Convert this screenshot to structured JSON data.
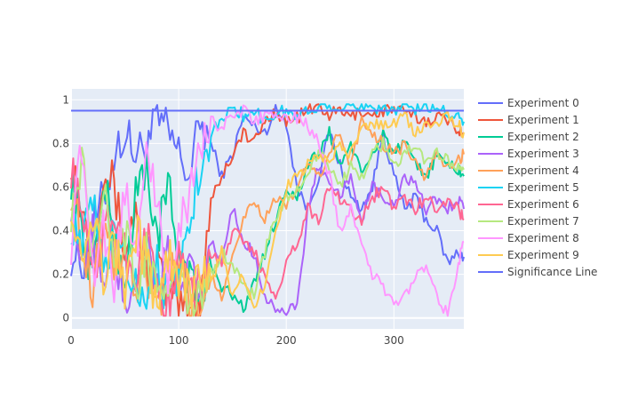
{
  "chart_data": {
    "type": "line",
    "title": "",
    "xlabel": "",
    "ylabel": "",
    "xlim": [
      0,
      365
    ],
    "ylim": [
      -0.05,
      1.05
    ],
    "x_ticks": [
      0,
      100,
      200,
      300
    ],
    "y_ticks": [
      0,
      0.2,
      0.4,
      0.6,
      0.8,
      1
    ],
    "x_tick_labels": [
      "0",
      "100",
      "200",
      "300"
    ],
    "y_tick_labels": [
      "0",
      "0.2",
      "0.4",
      "0.6",
      "0.8",
      "1"
    ],
    "grid": true,
    "legend_position": "right",
    "plot_background": "#E5ECF6",
    "series": [
      {
        "name": "Experiment 0",
        "color": "#636EFA",
        "x": [
          0,
          10,
          20,
          30,
          40,
          50,
          60,
          70,
          80,
          90,
          100,
          110,
          120,
          130,
          140,
          150,
          160,
          170,
          180,
          190,
          200,
          210,
          220,
          230,
          240,
          250,
          260,
          270,
          280,
          290,
          300,
          310,
          320,
          330,
          340,
          350,
          360,
          365
        ],
        "y": [
          0.3,
          0.25,
          0.4,
          0.55,
          0.75,
          0.85,
          0.75,
          0.8,
          0.9,
          0.85,
          0.75,
          0.65,
          0.9,
          0.8,
          0.65,
          0.75,
          0.92,
          0.88,
          0.85,
          0.95,
          0.9,
          0.6,
          0.5,
          0.65,
          0.85,
          0.7,
          0.55,
          0.5,
          0.6,
          0.85,
          0.65,
          0.5,
          0.55,
          0.45,
          0.4,
          0.25,
          0.3,
          0.28
        ]
      },
      {
        "name": "Experiment 1",
        "color": "#EF553B",
        "x": [
          0,
          10,
          20,
          30,
          40,
          50,
          60,
          70,
          80,
          90,
          100,
          110,
          120,
          130,
          140,
          150,
          160,
          170,
          180,
          190,
          200,
          210,
          220,
          230,
          240,
          250,
          260,
          270,
          280,
          290,
          300,
          310,
          320,
          330,
          340,
          350,
          360,
          365
        ],
        "y": [
          0.75,
          0.5,
          0.3,
          0.7,
          0.6,
          0.3,
          0.5,
          0.2,
          0.25,
          0.1,
          0.05,
          0.02,
          0.1,
          0.55,
          0.65,
          0.75,
          0.85,
          0.8,
          0.9,
          0.95,
          0.9,
          0.92,
          0.95,
          0.97,
          0.93,
          0.95,
          0.92,
          0.95,
          0.93,
          0.95,
          0.96,
          0.94,
          0.92,
          0.9,
          0.93,
          0.9,
          0.87,
          0.85
        ]
      },
      {
        "name": "Experiment 2",
        "color": "#00CC96",
        "x": [
          0,
          10,
          20,
          30,
          40,
          50,
          60,
          70,
          80,
          90,
          100,
          110,
          120,
          130,
          140,
          150,
          160,
          170,
          180,
          190,
          200,
          210,
          220,
          230,
          240,
          250,
          260,
          270,
          280,
          290,
          300,
          310,
          320,
          330,
          340,
          350,
          360,
          365
        ],
        "y": [
          0.65,
          0.4,
          0.2,
          0.6,
          0.4,
          0.15,
          0.55,
          0.7,
          0.35,
          0.6,
          0.3,
          0.2,
          0.05,
          0.25,
          0.15,
          0.1,
          0.05,
          0.15,
          0.3,
          0.45,
          0.6,
          0.55,
          0.7,
          0.75,
          0.85,
          0.7,
          0.8,
          0.65,
          0.75,
          0.85,
          0.75,
          0.8,
          0.7,
          0.65,
          0.75,
          0.7,
          0.68,
          0.65
        ]
      },
      {
        "name": "Experiment 3",
        "color": "#AB63FA",
        "x": [
          0,
          10,
          20,
          30,
          40,
          50,
          60,
          70,
          80,
          90,
          100,
          110,
          120,
          130,
          140,
          150,
          160,
          170,
          180,
          190,
          200,
          210,
          220,
          230,
          240,
          250,
          260,
          270,
          280,
          290,
          300,
          310,
          320,
          330,
          340,
          350,
          360,
          365
        ],
        "y": [
          0.55,
          0.2,
          0.4,
          0.1,
          0.3,
          0.05,
          0.2,
          0.35,
          0.15,
          0.3,
          0.1,
          0.2,
          0.1,
          0.35,
          0.25,
          0.5,
          0.35,
          0.3,
          0.1,
          0.05,
          0.02,
          0.05,
          0.5,
          0.7,
          0.6,
          0.55,
          0.65,
          0.45,
          0.6,
          0.55,
          0.5,
          0.65,
          0.6,
          0.5,
          0.55,
          0.5,
          0.55,
          0.5
        ]
      },
      {
        "name": "Experiment 4",
        "color": "#FFA15A",
        "x": [
          0,
          10,
          20,
          30,
          40,
          50,
          60,
          70,
          80,
          90,
          100,
          110,
          120,
          130,
          140,
          150,
          160,
          170,
          180,
          190,
          200,
          210,
          220,
          230,
          240,
          250,
          260,
          270,
          280,
          290,
          300,
          310,
          320,
          330,
          340,
          350,
          360,
          365
        ],
        "y": [
          0.6,
          0.35,
          0.15,
          0.45,
          0.25,
          0.3,
          0.1,
          0.2,
          0.05,
          0.15,
          0.25,
          0.1,
          0.05,
          0.2,
          0.1,
          0.3,
          0.45,
          0.55,
          0.45,
          0.55,
          0.5,
          0.6,
          0.7,
          0.65,
          0.75,
          0.85,
          0.7,
          0.9,
          0.85,
          0.8,
          0.75,
          0.8,
          0.7,
          0.65,
          0.75,
          0.7,
          0.72,
          0.75
        ]
      },
      {
        "name": "Experiment 5",
        "color": "#19D3F3",
        "x": [
          0,
          10,
          20,
          30,
          40,
          50,
          60,
          70,
          80,
          90,
          100,
          110,
          120,
          130,
          140,
          150,
          160,
          170,
          180,
          190,
          200,
          210,
          220,
          230,
          240,
          250,
          260,
          270,
          280,
          290,
          300,
          310,
          320,
          330,
          340,
          350,
          360,
          365
        ],
        "y": [
          0.45,
          0.3,
          0.55,
          0.2,
          0.4,
          0.3,
          0.15,
          0.1,
          0.3,
          0.05,
          0.2,
          0.45,
          0.7,
          0.85,
          0.9,
          0.97,
          0.93,
          0.95,
          0.9,
          0.94,
          0.95,
          0.92,
          0.95,
          0.97,
          0.98,
          0.97,
          0.96,
          0.98,
          0.97,
          0.96,
          0.95,
          0.97,
          0.96,
          0.97,
          0.96,
          0.95,
          0.92,
          0.9
        ]
      },
      {
        "name": "Experiment 6",
        "color": "#FF6692",
        "x": [
          0,
          10,
          20,
          30,
          40,
          50,
          60,
          70,
          80,
          90,
          100,
          110,
          120,
          130,
          140,
          150,
          160,
          170,
          180,
          190,
          200,
          210,
          220,
          230,
          240,
          250,
          260,
          270,
          280,
          290,
          300,
          310,
          320,
          330,
          340,
          350,
          360,
          365
        ],
        "y": [
          0.7,
          0.45,
          0.25,
          0.35,
          0.5,
          0.3,
          0.2,
          0.4,
          0.15,
          0.05,
          0.25,
          0.2,
          0.1,
          0.3,
          0.25,
          0.4,
          0.35,
          0.3,
          0.2,
          0.1,
          0.25,
          0.35,
          0.5,
          0.45,
          0.6,
          0.55,
          0.5,
          0.45,
          0.55,
          0.6,
          0.5,
          0.55,
          0.5,
          0.55,
          0.5,
          0.55,
          0.5,
          0.45
        ]
      },
      {
        "name": "Experiment 7",
        "color": "#B6E880",
        "x": [
          0,
          10,
          20,
          30,
          40,
          50,
          60,
          70,
          80,
          90,
          100,
          110,
          120,
          130,
          140,
          150,
          160,
          170,
          180,
          190,
          200,
          210,
          220,
          230,
          240,
          250,
          260,
          270,
          280,
          290,
          300,
          310,
          320,
          330,
          340,
          350,
          360,
          365
        ],
        "y": [
          0.5,
          0.7,
          0.3,
          0.6,
          0.2,
          0.4,
          0.15,
          0.3,
          0.1,
          0.2,
          0.15,
          0.05,
          0.1,
          0.2,
          0.3,
          0.25,
          0.15,
          0.1,
          0.3,
          0.45,
          0.55,
          0.6,
          0.65,
          0.75,
          0.7,
          0.6,
          0.7,
          0.65,
          0.75,
          0.8,
          0.7,
          0.75,
          0.8,
          0.7,
          0.75,
          0.72,
          0.7,
          0.68
        ]
      },
      {
        "name": "Experiment 8",
        "color": "#FF97FF",
        "x": [
          0,
          10,
          20,
          30,
          40,
          50,
          60,
          70,
          80,
          90,
          100,
          110,
          120,
          130,
          140,
          150,
          160,
          170,
          180,
          190,
          200,
          210,
          220,
          230,
          240,
          250,
          260,
          270,
          280,
          290,
          300,
          310,
          320,
          330,
          340,
          350,
          360,
          365
        ],
        "y": [
          0.35,
          0.8,
          0.2,
          0.45,
          0.15,
          0.6,
          0.3,
          0.75,
          0.5,
          0.2,
          0.4,
          0.55,
          0.8,
          0.9,
          0.88,
          0.92,
          0.95,
          0.9,
          0.93,
          0.94,
          0.9,
          0.92,
          0.88,
          0.8,
          0.65,
          0.4,
          0.5,
          0.35,
          0.2,
          0.15,
          0.05,
          0.1,
          0.2,
          0.25,
          0.1,
          0.02,
          0.25,
          0.35
        ]
      },
      {
        "name": "Experiment 9",
        "color": "#FECB52",
        "x": [
          0,
          10,
          20,
          30,
          40,
          50,
          60,
          70,
          80,
          90,
          100,
          110,
          120,
          130,
          140,
          150,
          160,
          170,
          180,
          190,
          200,
          210,
          220,
          230,
          240,
          250,
          260,
          270,
          280,
          290,
          300,
          310,
          320,
          330,
          340,
          350,
          360,
          365
        ],
        "y": [
          0.55,
          0.3,
          0.5,
          0.2,
          0.35,
          0.1,
          0.4,
          0.25,
          0.05,
          0.3,
          0.2,
          0.1,
          0.25,
          0.15,
          0.3,
          0.1,
          0.2,
          0.05,
          0.15,
          0.4,
          0.6,
          0.65,
          0.7,
          0.75,
          0.7,
          0.8,
          0.75,
          0.85,
          0.9,
          0.88,
          0.9,
          0.92,
          0.85,
          0.88,
          0.9,
          0.93,
          0.88,
          0.85
        ]
      },
      {
        "name": "Significance Line",
        "color": "#636EFA",
        "x": [
          0,
          365
        ],
        "y": [
          0.95,
          0.95
        ]
      }
    ]
  }
}
